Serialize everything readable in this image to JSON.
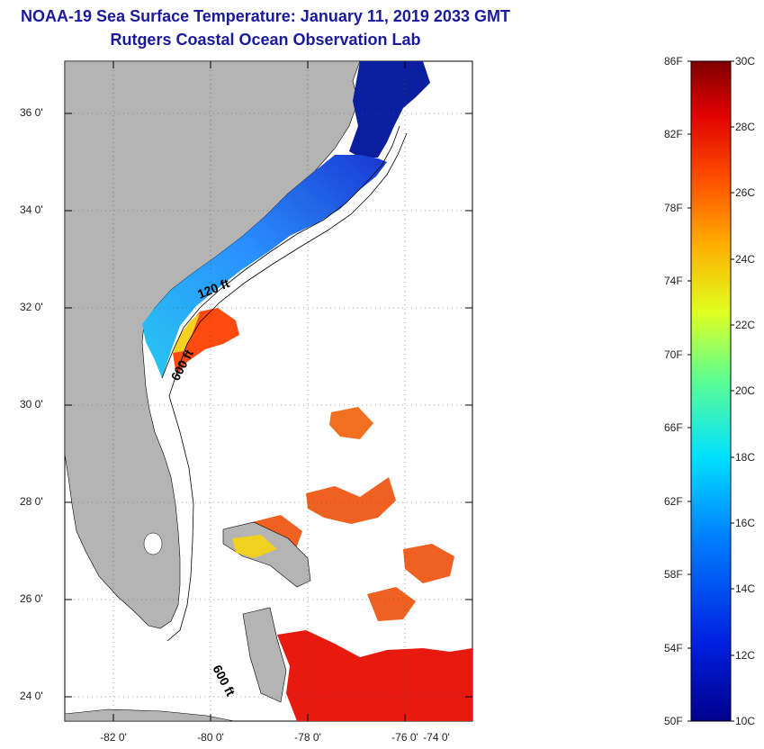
{
  "title": {
    "line1": "NOAA-19 Sea Surface Temperature:  January 11, 2019 2033 GMT",
    "line2": "Rutgers Coastal Ocean Observation Lab"
  },
  "map": {
    "lat_labels": [
      "36 0'",
      "34 0'",
      "32 0'",
      "30 0'",
      "28 0'",
      "26 0'",
      "24 0'"
    ],
    "lon_labels": [
      "-82 0'",
      "-80 0'",
      "-78 0'",
      "-76 0'",
      "-74 0'"
    ],
    "contour_labels": [
      "120 ft",
      "600 ft",
      "600 ft"
    ],
    "colors": {
      "land": "#b4b4b4",
      "water_nodata": "#ffffff",
      "cold": "#0a1ea0",
      "cool": "#2a8cff",
      "warm": "#ff4a10",
      "hot": "#e81a10"
    }
  },
  "colorbar": {
    "fahrenheit": [
      "86F",
      "82F",
      "78F",
      "74F",
      "70F",
      "66F",
      "62F",
      "58F",
      "54F",
      "50F"
    ],
    "celsius": [
      "30C",
      "28C",
      "26C",
      "24C",
      "22C",
      "20C",
      "18C",
      "16C",
      "14C",
      "12C",
      "10C"
    ],
    "range_c": [
      10,
      30
    ],
    "range_f": [
      50,
      86
    ]
  }
}
